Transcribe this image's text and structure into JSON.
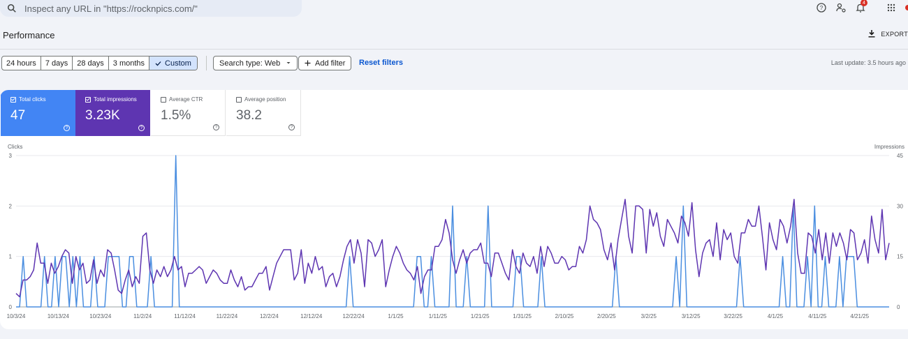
{
  "search": {
    "placeholder": "Inspect any URL in \"https://rocknpics.com/\""
  },
  "header": {
    "title": "Performance",
    "export_label": "EXPORT"
  },
  "topbar": {
    "notification_count": "4",
    "icons": [
      "help-icon",
      "manage-accounts-icon",
      "notifications-icon",
      "apps-grid-icon"
    ]
  },
  "filters": {
    "date_ranges": [
      "24 hours",
      "7 days",
      "28 days",
      "3 months",
      "Custom"
    ],
    "selected_range": "Custom",
    "search_type": "Search type: Web",
    "add_filter": "Add filter",
    "reset": "Reset filters",
    "last_update": "Last update: 3.5 hours ago"
  },
  "metrics": [
    {
      "label": "Total clicks",
      "value": "47",
      "checked": true,
      "color": "#4285f4"
    },
    {
      "label": "Total impressions",
      "value": "3.23K",
      "checked": true,
      "color": "#5e35b1"
    },
    {
      "label": "Average CTR",
      "value": "1.5%",
      "checked": false
    },
    {
      "label": "Average position",
      "value": "38.2",
      "checked": false
    }
  ],
  "chart_data": {
    "type": "line",
    "left_axis_label": "Clicks",
    "right_axis_label": "Impressions",
    "left_ticks": [
      "0",
      "1",
      "2",
      "3"
    ],
    "right_ticks": [
      "0",
      "15",
      "30",
      "45"
    ],
    "ylim_left": [
      0,
      3
    ],
    "ylim_right": [
      0,
      45
    ],
    "x_tick_labels": [
      "10/3/24",
      "10/13/24",
      "10/23/24",
      "11/2/24",
      "11/12/24",
      "11/22/24",
      "12/2/24",
      "12/12/24",
      "12/22/24",
      "1/1/25",
      "1/11/25",
      "1/21/25",
      "1/31/25",
      "2/10/25",
      "2/20/25",
      "3/2/25",
      "3/12/25",
      "3/22/25",
      "4/1/25",
      "4/11/25",
      "4/21/25"
    ],
    "x_start": "10/3/24",
    "x_end": "4/28/25",
    "series": [
      {
        "name": "Clicks",
        "axis": "left",
        "color": "#4a8ee0",
        "values": [
          0,
          0,
          1,
          0,
          0,
          0,
          0,
          0,
          1,
          0,
          0,
          1,
          0,
          1,
          1,
          0,
          1,
          0,
          1,
          0,
          0,
          0,
          1,
          0,
          0,
          0,
          1,
          1,
          1,
          1,
          0,
          0,
          1,
          1,
          0,
          0,
          0,
          0,
          1,
          0,
          0,
          0,
          0,
          0,
          0,
          3,
          0,
          0,
          0,
          0,
          0,
          0,
          0,
          0,
          0,
          0,
          0,
          0,
          0,
          0,
          0,
          0,
          0,
          0,
          0,
          0,
          0,
          0,
          0,
          0,
          0,
          0,
          0,
          0,
          0,
          0,
          0,
          0,
          0,
          0,
          0,
          0,
          0,
          0,
          0,
          0,
          0,
          0,
          0,
          0,
          0,
          0,
          0,
          0,
          1,
          0,
          0,
          0,
          0,
          0,
          0,
          0,
          0,
          0,
          0,
          0,
          0,
          0,
          0,
          0,
          0,
          0,
          0,
          1,
          1,
          0,
          0,
          1,
          0,
          0,
          0,
          0,
          0,
          2,
          0,
          0,
          0,
          1,
          0,
          0,
          0,
          0,
          0,
          2,
          0,
          0,
          0,
          0,
          0,
          0,
          0,
          1,
          1,
          0,
          0,
          0,
          0,
          0,
          1,
          0,
          0,
          0,
          0,
          0,
          0,
          0,
          0,
          0,
          0,
          0,
          0,
          0,
          0,
          0,
          0,
          0,
          0,
          0,
          0,
          1,
          0,
          0,
          0,
          0,
          0,
          0,
          0,
          0,
          0,
          0,
          0,
          0,
          0,
          0,
          0,
          0,
          1,
          0,
          2,
          0,
          0,
          0,
          0,
          0,
          0,
          0,
          0,
          0,
          0,
          0,
          0,
          0,
          0,
          0,
          1,
          0,
          0,
          0,
          0,
          0,
          0,
          0,
          0,
          0,
          0,
          0,
          1,
          0,
          0,
          2,
          0,
          0,
          0,
          1,
          0,
          2,
          0,
          0,
          1,
          0,
          0,
          0,
          1,
          0,
          1,
          1,
          1,
          0,
          0,
          0,
          0,
          0,
          0,
          0,
          0,
          0,
          0
        ]
      },
      {
        "name": "Impressions",
        "axis": "right",
        "color": "#5e35b1",
        "values": [
          4,
          3,
          8,
          8,
          9,
          11,
          19,
          13,
          13,
          7,
          13,
          10,
          12,
          15,
          17,
          16,
          7,
          15,
          11,
          13,
          7,
          8,
          14,
          7,
          11,
          9,
          17,
          16,
          11,
          5,
          4,
          8,
          11,
          6,
          9,
          7,
          21,
          22,
          11,
          7,
          11,
          9,
          12,
          9,
          11,
          15,
          11,
          12,
          6,
          10,
          10,
          11,
          12,
          11,
          7,
          9,
          11,
          10,
          8,
          7,
          7,
          11,
          8,
          6,
          9,
          5,
          6,
          6,
          8,
          10,
          10,
          12,
          5,
          9,
          13,
          15,
          17,
          17,
          17,
          8,
          10,
          17,
          7,
          13,
          10,
          15,
          11,
          12,
          6,
          9,
          10,
          6,
          9,
          14,
          18,
          20,
          13,
          20,
          16,
          6,
          20,
          19,
          15,
          17,
          20,
          6,
          11,
          15,
          18,
          16,
          13,
          11,
          10,
          8,
          12,
          4,
          9,
          11,
          11,
          18,
          18,
          20,
          26,
          22,
          14,
          10,
          14,
          17,
          13,
          16,
          17,
          17,
          19,
          13,
          13,
          9,
          16,
          16,
          13,
          10,
          8,
          17,
          12,
          10,
          16,
          13,
          12,
          15,
          10,
          18,
          12,
          18,
          16,
          13,
          13,
          15,
          14,
          11,
          12,
          12,
          18,
          16,
          20,
          30,
          26,
          25,
          23,
          17,
          14,
          19,
          11,
          20,
          26,
          32,
          21,
          16,
          30,
          30,
          29,
          16,
          29,
          24,
          28,
          21,
          18,
          26,
          24,
          22,
          19,
          27,
          25,
          21,
          31,
          17,
          9,
          16,
          19,
          20,
          15,
          25,
          14,
          23,
          20,
          22,
          15,
          13,
          22,
          22,
          26,
          24,
          24,
          30,
          21,
          11,
          25,
          20,
          17,
          26,
          24,
          19,
          24,
          32,
          16,
          10,
          10,
          22,
          21,
          16,
          23,
          14,
          22,
          13,
          22,
          18,
          22,
          19,
          14,
          23,
          22,
          14,
          16,
          20,
          13,
          27,
          20,
          16,
          29,
          14,
          19
        ]
      }
    ]
  }
}
